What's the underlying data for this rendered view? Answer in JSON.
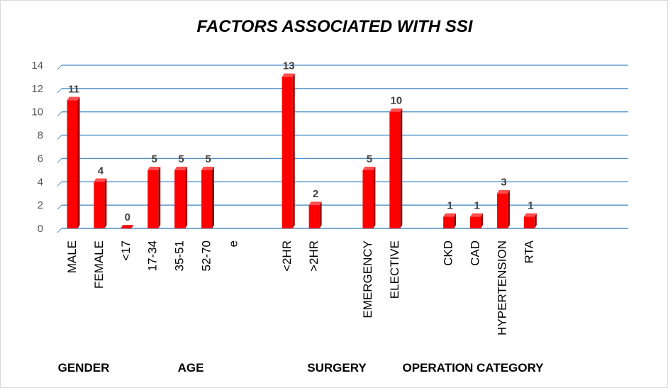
{
  "chart_data": {
    "type": "bar",
    "title": "FACTORS ASSOCIATED WITH SSI",
    "categories": [
      "MALE",
      "FEMALE",
      "<17",
      "17-34",
      "35-51",
      "52-70",
      "e",
      "",
      "<2HR",
      ">2HR",
      "",
      "EMERGENCY",
      "ELECTIVE",
      "",
      "CKD",
      "CAD",
      "HYPERTENSION",
      "RTA"
    ],
    "values": [
      11,
      4,
      0,
      5,
      5,
      5,
      null,
      null,
      13,
      2,
      null,
      5,
      10,
      null,
      1,
      1,
      3,
      1
    ],
    "ylim": [
      0,
      14
    ],
    "yticks": [
      "0",
      "2",
      "4",
      "6",
      "8",
      "10",
      "12",
      "14"
    ],
    "groups": [
      "GENDER",
      "AGE",
      "SURGERY",
      "OPERATION CATEGORY"
    ],
    "grid": true,
    "colors": {
      "bar": "#ff0000",
      "bar_side": "#a00000",
      "bar_top": "#ff4d4d",
      "grid": "#4f91c9"
    }
  }
}
